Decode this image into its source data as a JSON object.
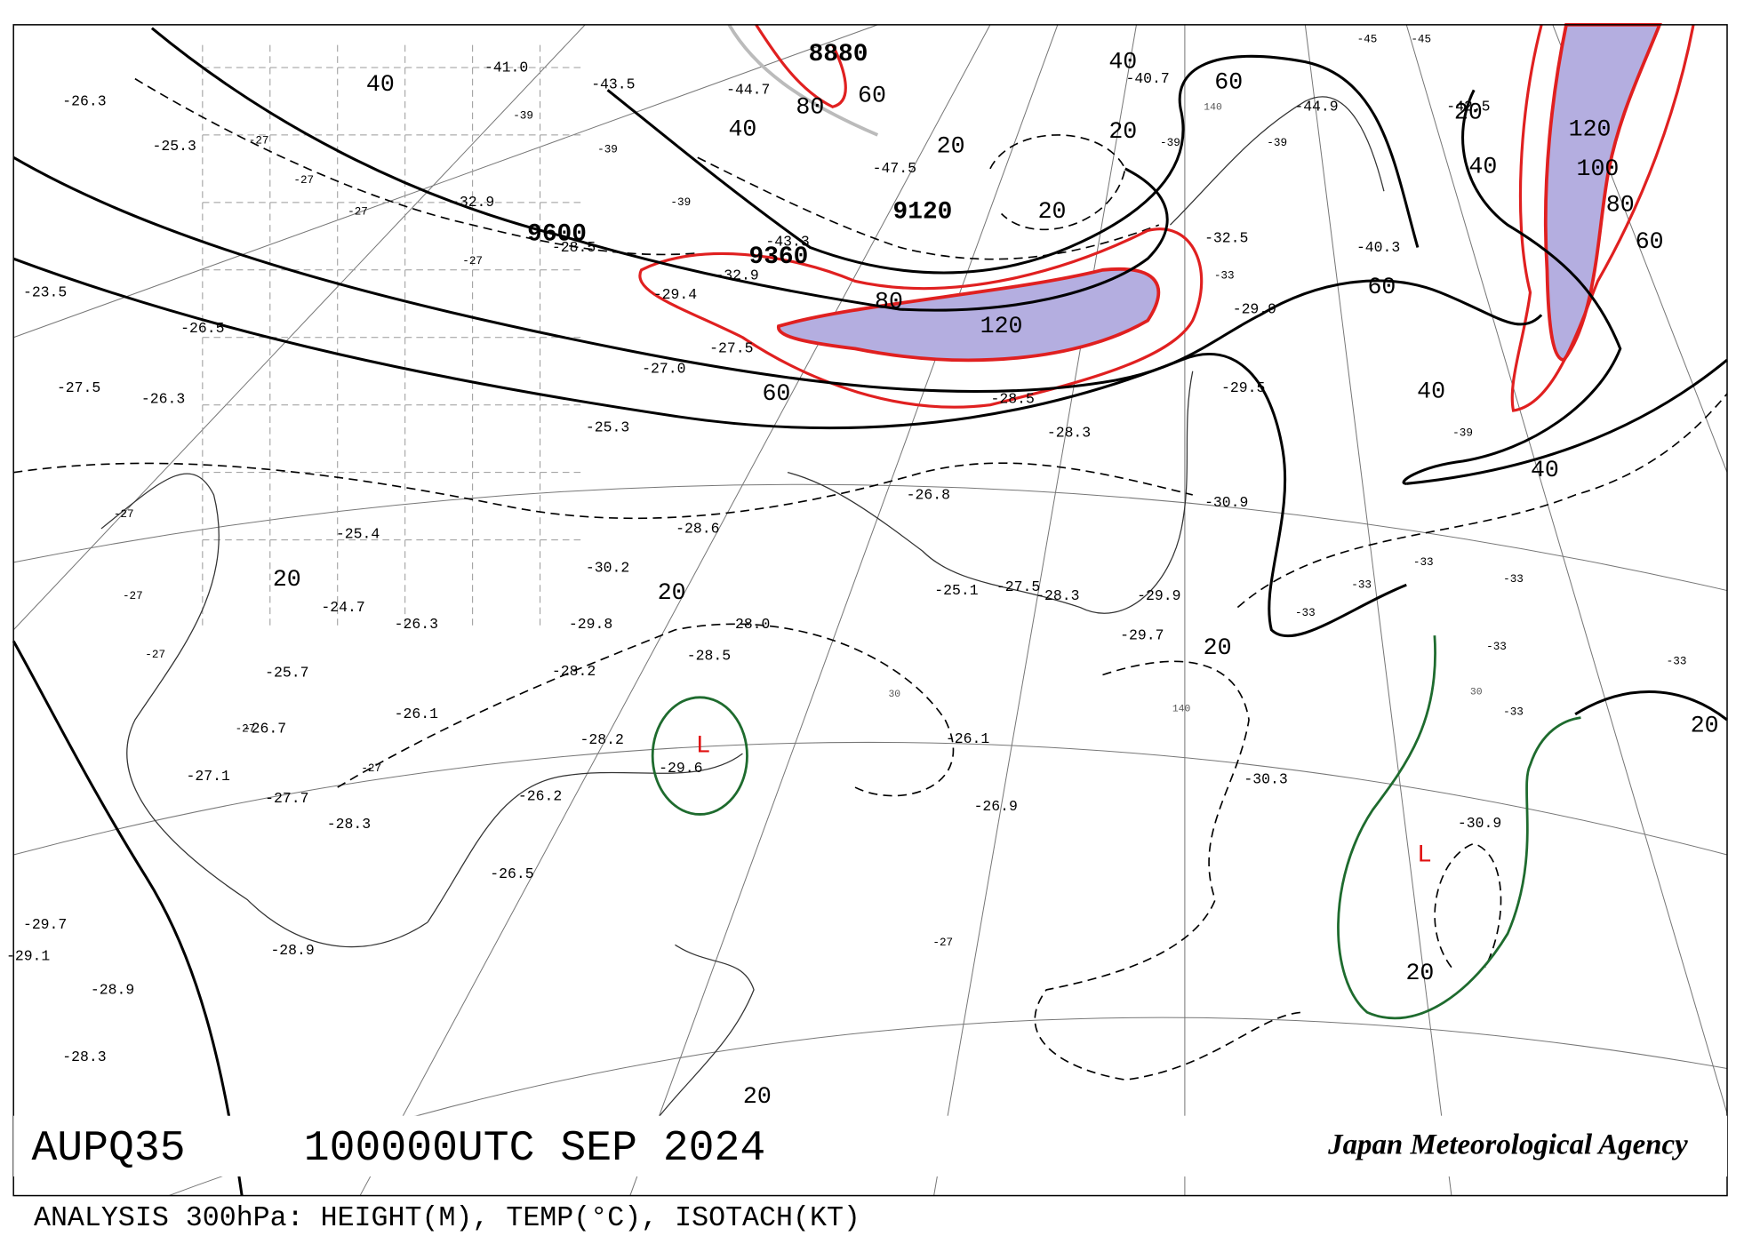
{
  "header": {
    "code": "AUPQ35",
    "time": "100000UTC SEP 2024",
    "agency": "Japan Meteorological Agency"
  },
  "footer": "ANALYSIS 300hPa: HEIGHT(M), TEMP(°C), ISOTACH(KT)",
  "heights": [
    "8880",
    "9120",
    "9360",
    "9600"
  ],
  "isotachs": [
    "40",
    "60",
    "80",
    "40",
    "20",
    "20",
    "20",
    "40",
    "60",
    "20",
    "40",
    "120",
    "100",
    "80",
    "60",
    "60",
    "40",
    "40",
    "60",
    "80",
    "120",
    "20",
    "20",
    "20",
    "20",
    "20",
    "20"
  ],
  "lows": [
    "L",
    "L"
  ],
  "grid_labels": [
    "140",
    "140",
    "30",
    "30"
  ],
  "temperatures": [
    "-26.3",
    "-25.3",
    "-23.5",
    "-26.5",
    "-26.3",
    "-27.5",
    "-32.9",
    "-28.5",
    "-29.4",
    "-32.9",
    "-27.5",
    "-27.0",
    "-25.3",
    "-28.3",
    "-29.5",
    "-30.9",
    "-29.9",
    "-32.5",
    "-28.5",
    "-26.8",
    "-28.6",
    "-30.2",
    "-29.8",
    "-28.0",
    "-28.5",
    "-28.2",
    "-26.1",
    "-26.9",
    "-30.3",
    "-30.9",
    "-28.3",
    "-26.5",
    "-28.9",
    "-29.7",
    "-28.9",
    "-28.3",
    "-29.1",
    "-27.1",
    "-27.7",
    "-26.7",
    "-25.7",
    "-24.7",
    "-26.3",
    "-25.4",
    "-26.2",
    "-25.1",
    "-27.5",
    "-28.3",
    "-29.7",
    "-29.9",
    "-26.1",
    "-28.2",
    "-29.6",
    "-41.0",
    "-43.5",
    "-44.7",
    "-47.5",
    "-43.3",
    "-40.7",
    "-44.9",
    "-40.3",
    "-42.5"
  ],
  "isotherm_labels": [
    "-27",
    "-27",
    "-27",
    "-27",
    "-27",
    "-27",
    "-27",
    "-27",
    "-27",
    "-27",
    "-33",
    "-33",
    "-33",
    "-33",
    "-33",
    "-33",
    "-33",
    "-33",
    "-39",
    "-39",
    "-39",
    "-39",
    "-39",
    "-39",
    "-45",
    "-45"
  ]
}
